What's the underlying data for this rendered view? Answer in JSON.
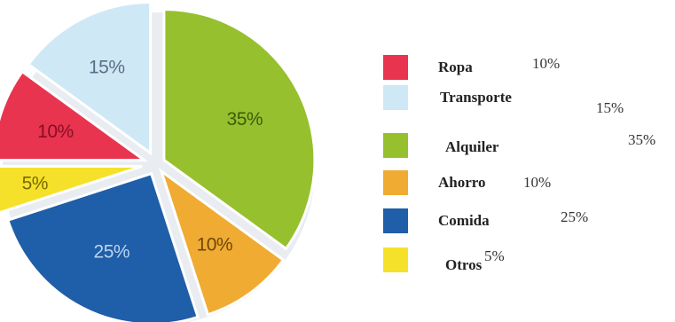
{
  "chart_data": {
    "type": "pie",
    "slices": [
      {
        "label": "Ropa",
        "value": 10,
        "pct_label": "10%",
        "color": "#e8344f",
        "label_color": "#8a0d25"
      },
      {
        "label": "Transporte",
        "value": 15,
        "pct_label": "15%",
        "color": "#cfe8f6",
        "label_color": "#5c6e86"
      },
      {
        "label": "Alquiler",
        "value": 35,
        "pct_label": "35%",
        "color": "#96c02e",
        "label_color": "#3f5a0a"
      },
      {
        "label": "Ahorro",
        "value": 10,
        "pct_label": "10%",
        "color": "#f0ab33",
        "label_color": "#6e4806"
      },
      {
        "label": "Comida",
        "value": 25,
        "pct_label": "25%",
        "color": "#1f5ea8",
        "label_color": "#bcd3ee"
      },
      {
        "label": "Otros",
        "value": 5,
        "pct_label": "5%",
        "color": "#f5e12a",
        "label_color": "#7a6a00"
      }
    ]
  },
  "legend": {
    "items": [
      {
        "swatch_color": "#e8344f",
        "name": "Ropa",
        "pct": "10%"
      },
      {
        "swatch_color": "#cfe8f6",
        "name": "Transporte",
        "pct": "15%"
      },
      {
        "swatch_color": "#96c02e",
        "name": "Alquiler",
        "pct": "35%"
      },
      {
        "swatch_color": "#f0ab33",
        "name": "Ahorro",
        "pct": "10%"
      },
      {
        "swatch_color": "#1f5ea8",
        "name": "Comida",
        "pct": "25%"
      },
      {
        "swatch_color": "#f5e12a",
        "name": "Otros",
        "pct": "5%"
      }
    ]
  }
}
